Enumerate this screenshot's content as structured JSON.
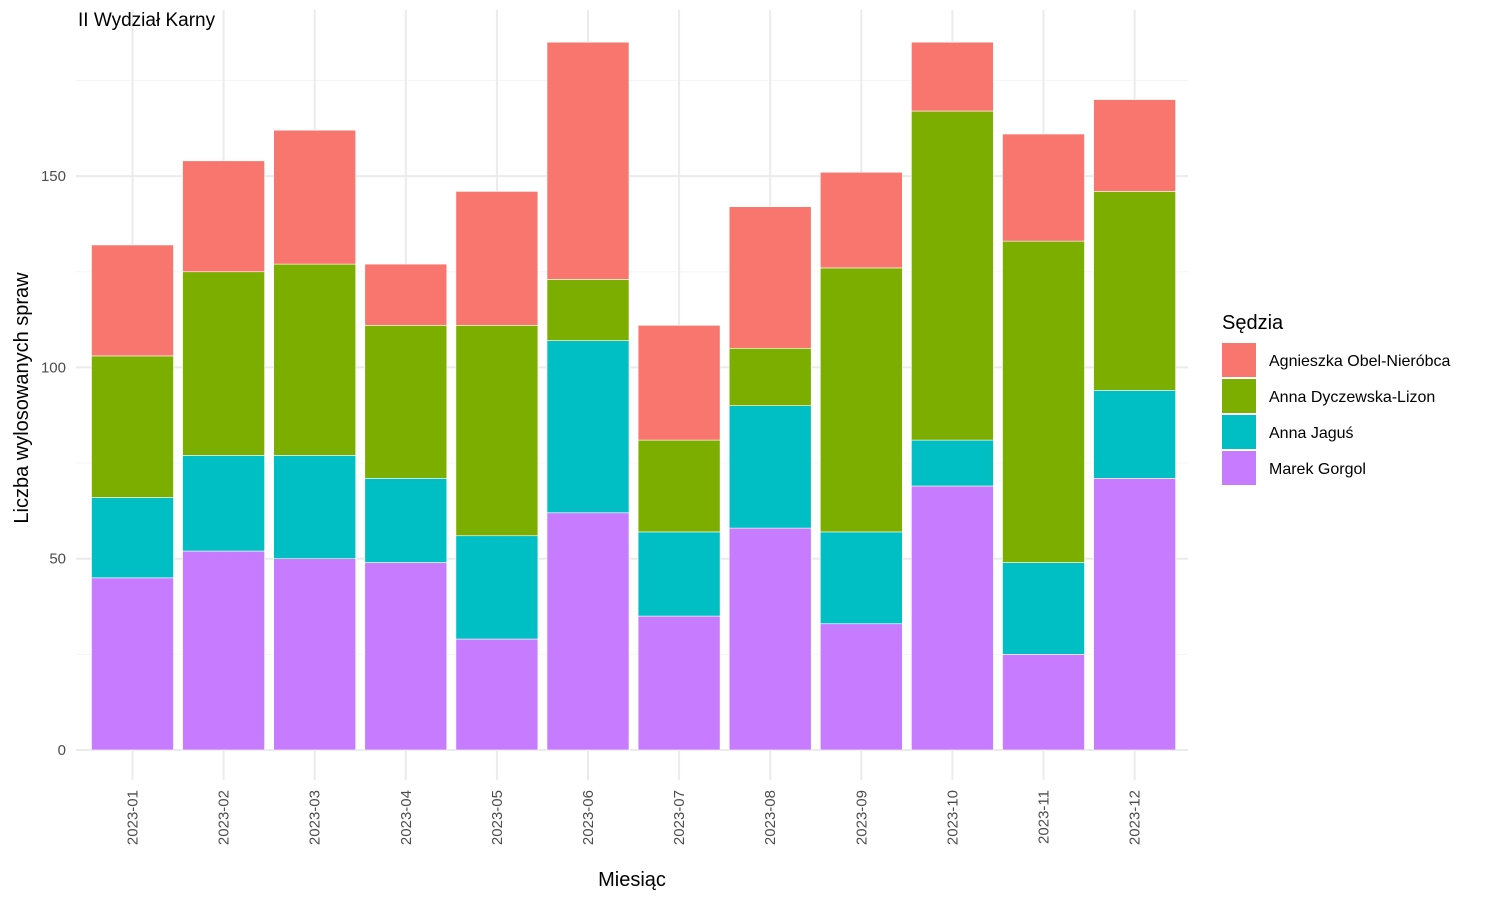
{
  "chart_data": {
    "type": "bar",
    "stacked": true,
    "title": "II Wydział Karny",
    "xlabel": "Miesiąc",
    "ylabel": "Liczba wylosowanych spraw",
    "ylim": [
      0,
      190
    ],
    "yticks": [
      0,
      50,
      100,
      150
    ],
    "grid": true,
    "legend_title": "Sędzia",
    "legend_position": "right",
    "categories": [
      "2023-01",
      "2023-02",
      "2023-03",
      "2023-04",
      "2023-05",
      "2023-06",
      "2023-07",
      "2023-08",
      "2023-09",
      "2023-10",
      "2023-11",
      "2023-12"
    ],
    "series": [
      {
        "name": "Marek Gorgol",
        "color": "#C77CFF",
        "values": [
          45,
          52,
          50,
          49,
          29,
          62,
          35,
          58,
          33,
          69,
          25,
          71
        ]
      },
      {
        "name": "Anna Jaguś",
        "color": "#00BFC4",
        "values": [
          21,
          25,
          27,
          22,
          27,
          45,
          22,
          32,
          24,
          12,
          24,
          23
        ]
      },
      {
        "name": "Anna Dyczewska-Lizon",
        "color": "#7CAE00",
        "values": [
          37,
          48,
          50,
          40,
          55,
          16,
          24,
          15,
          69,
          86,
          84,
          52
        ]
      },
      {
        "name": "Agnieszka Obel-Nieróbca",
        "color": "#F8766D",
        "values": [
          29,
          29,
          35,
          16,
          35,
          62,
          30,
          37,
          25,
          18,
          28,
          24
        ]
      }
    ],
    "legend_order": [
      "Agnieszka Obel-Nieróbca",
      "Anna Dyczewska-Lizon",
      "Anna Jaguś",
      "Marek Gorgol"
    ]
  }
}
